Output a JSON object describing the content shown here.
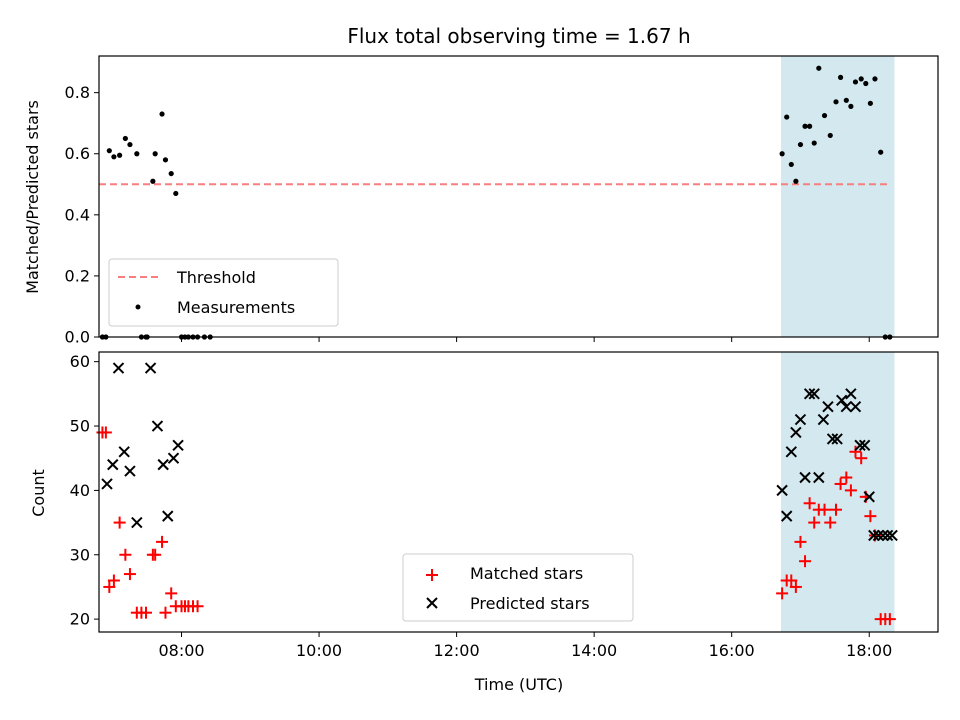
{
  "chart_data": [
    {
      "type": "scatter",
      "title": "Flux total observing time = 1.67 h",
      "ylabel": "Matched/Predicted stars",
      "xlabel": "",
      "xlim": [
        "06:48",
        "19:00"
      ],
      "ylim": [
        0.0,
        0.92
      ],
      "yticks": [
        0.0,
        0.2,
        0.4,
        0.6,
        0.8
      ],
      "ytick_labels": [
        "0.0",
        "0.2",
        "0.4",
        "0.6",
        "0.8"
      ],
      "shaded_region": {
        "start": "16:43",
        "end": "18:22",
        "color": "#d3e9ef"
      },
      "threshold": {
        "name": "Threshold",
        "value": 0.5,
        "x": [
          "06:48",
          "18:18"
        ],
        "color": "#f77f7f"
      },
      "legend": {
        "position": "lower left",
        "entries": [
          "Threshold",
          "Measurements"
        ]
      },
      "series": [
        {
          "name": "Measurements",
          "marker": "dot",
          "color": "#000000",
          "x": [
            "06:51",
            "06:54",
            "06:57",
            "07:01",
            "07:06",
            "07:11",
            "07:15",
            "07:21",
            "07:25",
            "07:29",
            "07:30",
            "07:35",
            "07:37",
            "07:43",
            "07:46",
            "07:51",
            "07:55",
            "08:00",
            "08:03",
            "08:06",
            "08:10",
            "08:14",
            "08:20",
            "08:25",
            "16:44",
            "16:48",
            "16:52",
            "16:56",
            "17:00",
            "17:04",
            "17:08",
            "17:12",
            "17:16",
            "17:21",
            "17:26",
            "17:31",
            "17:35",
            "17:40",
            "17:44",
            "17:48",
            "17:53",
            "17:57",
            "18:01",
            "18:05",
            "18:10",
            "18:14",
            "18:18"
          ],
          "y": [
            0.0,
            0.0,
            0.61,
            0.59,
            0.595,
            0.65,
            0.63,
            0.6,
            0.0,
            0.0,
            0.0,
            0.51,
            0.6,
            0.73,
            0.58,
            0.535,
            0.47,
            0.0,
            0.0,
            0.0,
            0.0,
            0.0,
            0.0,
            0.0,
            0.6,
            0.72,
            0.565,
            0.51,
            0.63,
            0.69,
            0.69,
            0.635,
            0.88,
            0.725,
            0.66,
            0.77,
            0.85,
            0.775,
            0.755,
            0.835,
            0.845,
            0.83,
            0.765,
            0.845,
            0.605,
            0.0,
            0.0
          ]
        }
      ]
    },
    {
      "type": "scatter",
      "title": "",
      "ylabel": "Count",
      "xlabel": "Time (UTC)",
      "xlim": [
        "06:48",
        "19:00"
      ],
      "ylim": [
        18,
        61.5
      ],
      "yticks": [
        20,
        30,
        40,
        50,
        60
      ],
      "ytick_labels": [
        "20",
        "30",
        "40",
        "50",
        "60"
      ],
      "xticks": [
        "08:00",
        "10:00",
        "12:00",
        "14:00",
        "16:00",
        "18:00"
      ],
      "shaded_region": {
        "start": "16:43",
        "end": "18:22",
        "color": "#d3e9ef"
      },
      "legend": {
        "position": "lower center",
        "entries": [
          "Matched stars",
          "Predicted stars"
        ]
      },
      "series": [
        {
          "name": "Matched stars",
          "marker": "plus",
          "color": "#ff0000",
          "x": [
            "06:51",
            "06:54",
            "06:57",
            "07:01",
            "07:06",
            "07:11",
            "07:15",
            "07:21",
            "07:25",
            "07:29",
            "07:35",
            "07:37",
            "07:43",
            "07:46",
            "07:51",
            "07:55",
            "08:00",
            "08:03",
            "08:06",
            "08:10",
            "08:14",
            "16:44",
            "16:48",
            "16:52",
            "16:56",
            "17:00",
            "17:04",
            "17:08",
            "17:12",
            "17:16",
            "17:21",
            "17:26",
            "17:31",
            "17:35",
            "17:40",
            "17:44",
            "17:48",
            "17:53",
            "17:57",
            "18:01",
            "18:05",
            "18:10",
            "18:14",
            "18:18"
          ],
          "y": [
            49,
            49,
            25,
            26,
            35,
            30,
            27,
            21,
            21,
            21,
            30,
            30,
            32,
            21,
            24,
            22,
            22,
            22,
            22,
            22,
            22,
            24,
            26,
            26,
            25,
            32,
            29,
            38,
            35,
            37,
            37,
            35,
            37,
            41,
            42,
            40,
            46,
            45,
            39,
            36,
            33,
            20,
            20,
            20
          ]
        },
        {
          "name": "Predicted stars",
          "marker": "x",
          "color": "#000000",
          "x": [
            "06:55",
            "07:00",
            "07:05",
            "07:10",
            "07:15",
            "07:21",
            "07:33",
            "07:39",
            "07:44",
            "07:48",
            "07:53",
            "07:57",
            "16:44",
            "16:48",
            "16:52",
            "16:56",
            "17:00",
            "17:04",
            "17:08",
            "17:12",
            "17:16",
            "17:20",
            "17:24",
            "17:28",
            "17:32",
            "17:36",
            "17:40",
            "17:44",
            "17:48",
            "17:52",
            "17:56",
            "18:00",
            "18:04",
            "18:08",
            "18:12",
            "18:16",
            "18:20"
          ],
          "y": [
            41,
            44,
            59,
            46,
            43,
            35,
            59,
            50,
            44,
            36,
            45,
            47,
            40,
            36,
            46,
            49,
            51,
            42,
            55,
            55,
            42,
            51,
            53,
            48,
            48,
            54,
            53,
            55,
            53,
            47,
            47,
            39,
            33,
            33,
            33,
            33,
            33
          ]
        }
      ]
    }
  ]
}
